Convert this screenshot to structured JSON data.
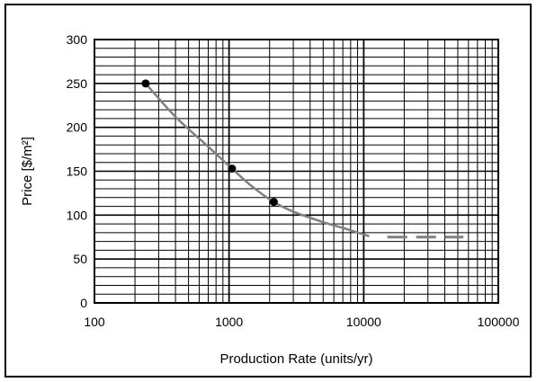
{
  "chart_data": {
    "type": "line",
    "title": "",
    "xlabel": "Production Rate (units/yr)",
    "ylabel": "Price [$/m²]",
    "x_scale": "log",
    "xlim": [
      100,
      100000
    ],
    "ylim": [
      0,
      300
    ],
    "x_ticks": [
      "100",
      "1000",
      "10000",
      "100000"
    ],
    "y_ticks": [
      "0",
      "50",
      "100",
      "150",
      "200",
      "250",
      "300"
    ],
    "y_minor_step": 10,
    "grid": true,
    "points": {
      "x": [
        240,
        1050,
        2150
      ],
      "y": [
        250,
        153,
        115
      ]
    },
    "curve": {
      "x": [
        240,
        400,
        700,
        1050,
        1500,
        2150,
        3000,
        5000,
        7500,
        11000
      ],
      "y": [
        250,
        212,
        178,
        153,
        132,
        115,
        104,
        92,
        84,
        76
      ]
    },
    "extrapolation": {
      "x": [
        15000,
        55000
      ],
      "y": [
        75,
        75
      ]
    },
    "colors": {
      "axis": "#000000",
      "grid": "#000000",
      "curve": "#808080",
      "point": "#000000"
    }
  }
}
